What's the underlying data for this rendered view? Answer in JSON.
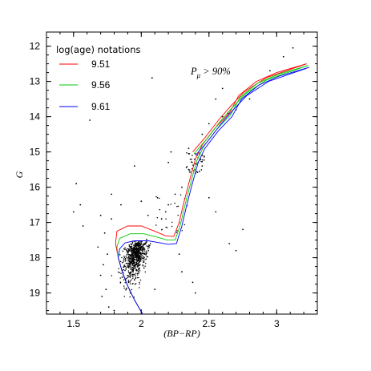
{
  "chart_data": {
    "type": "scatter",
    "title": "",
    "xlabel": "(BP−RP)",
    "ylabel": "G",
    "xlim": [
      1.3,
      3.3
    ],
    "ylim": [
      19.6,
      11.6
    ],
    "y_inverted": true,
    "x_ticks": [
      1.5,
      2,
      2.5,
      3
    ],
    "x_tick_labels": [
      "1.5",
      "2",
      "2.5",
      "3"
    ],
    "y_ticks": [
      12,
      13,
      14,
      15,
      16,
      17,
      18,
      19
    ],
    "y_tick_labels": [
      "12",
      "13",
      "14",
      "15",
      "16",
      "17",
      "18",
      "19"
    ],
    "legend": {
      "title": "log(age) notations",
      "placement": "top-left",
      "entries": [
        {
          "label": "9.51",
          "color": "#ff0000"
        },
        {
          "label": "9.56",
          "color": "#00cc00"
        },
        {
          "label": "9.61",
          "color": "#0000ff"
        }
      ]
    },
    "annotation": {
      "main": "P",
      "sub": "μ",
      "rest": " > 90%"
    },
    "isochrones": [
      {
        "name": "9.51",
        "color": "#ff0000",
        "points": [
          [
            2.01,
            19.6
          ],
          [
            1.95,
            19.2
          ],
          [
            1.9,
            18.8
          ],
          [
            1.86,
            18.4
          ],
          [
            1.83,
            18.0
          ],
          [
            1.81,
            17.6
          ],
          [
            1.82,
            17.25
          ],
          [
            1.9,
            17.1
          ],
          [
            2.0,
            17.1
          ],
          [
            2.1,
            17.25
          ],
          [
            2.18,
            17.38
          ],
          [
            2.24,
            17.4
          ],
          [
            2.28,
            17.0
          ],
          [
            2.31,
            16.5
          ],
          [
            2.35,
            15.9
          ],
          [
            2.4,
            15.2
          ],
          [
            2.45,
            14.8
          ],
          [
            2.55,
            14.3
          ],
          [
            2.65,
            13.9
          ],
          [
            2.72,
            13.4
          ],
          [
            2.85,
            13.0
          ],
          [
            3.0,
            12.75
          ],
          [
            3.22,
            12.5
          ]
        ]
      },
      {
        "name": "9.51-b",
        "color": "#ff0000",
        "points": [
          [
            2.38,
            15.0
          ],
          [
            2.47,
            14.6
          ],
          [
            2.57,
            14.1
          ],
          [
            2.66,
            13.7
          ],
          [
            2.76,
            13.3
          ],
          [
            2.92,
            12.9
          ],
          [
            3.22,
            12.5
          ]
        ]
      },
      {
        "name": "9.56",
        "color": "#00cc00",
        "points": [
          [
            2.01,
            19.6
          ],
          [
            1.95,
            19.2
          ],
          [
            1.9,
            18.8
          ],
          [
            1.86,
            18.4
          ],
          [
            1.83,
            18.0
          ],
          [
            1.82,
            17.7
          ],
          [
            1.84,
            17.45
          ],
          [
            1.92,
            17.32
          ],
          [
            2.02,
            17.32
          ],
          [
            2.12,
            17.42
          ],
          [
            2.19,
            17.5
          ],
          [
            2.25,
            17.5
          ],
          [
            2.29,
            17.05
          ],
          [
            2.32,
            16.55
          ],
          [
            2.36,
            15.95
          ],
          [
            2.41,
            15.25
          ],
          [
            2.46,
            14.85
          ],
          [
            2.56,
            14.35
          ],
          [
            2.66,
            13.95
          ],
          [
            2.73,
            13.45
          ],
          [
            2.86,
            13.05
          ],
          [
            3.01,
            12.8
          ],
          [
            3.23,
            12.55
          ]
        ]
      },
      {
        "name": "9.56-b",
        "color": "#00cc00",
        "points": [
          [
            2.39,
            15.05
          ],
          [
            2.48,
            14.65
          ],
          [
            2.58,
            14.15
          ],
          [
            2.67,
            13.75
          ],
          [
            2.77,
            13.35
          ],
          [
            2.93,
            12.95
          ],
          [
            3.23,
            12.55
          ]
        ]
      },
      {
        "name": "9.61",
        "color": "#0000ff",
        "points": [
          [
            2.01,
            19.6
          ],
          [
            1.95,
            19.2
          ],
          [
            1.9,
            18.8
          ],
          [
            1.86,
            18.4
          ],
          [
            1.83,
            18.0
          ],
          [
            1.84,
            17.75
          ],
          [
            1.88,
            17.58
          ],
          [
            1.95,
            17.52
          ],
          [
            2.05,
            17.52
          ],
          [
            2.14,
            17.58
          ],
          [
            2.2,
            17.62
          ],
          [
            2.26,
            17.6
          ],
          [
            2.3,
            17.1
          ],
          [
            2.33,
            16.6
          ],
          [
            2.37,
            16.0
          ],
          [
            2.42,
            15.3
          ],
          [
            2.47,
            14.9
          ],
          [
            2.57,
            14.4
          ],
          [
            2.67,
            14.0
          ],
          [
            2.74,
            13.5
          ],
          [
            2.87,
            13.1
          ],
          [
            3.02,
            12.85
          ],
          [
            3.24,
            12.6
          ]
        ]
      },
      {
        "name": "9.61-b",
        "color": "#0000ff",
        "points": [
          [
            2.4,
            15.1
          ],
          [
            2.49,
            14.7
          ],
          [
            2.59,
            14.2
          ],
          [
            2.68,
            13.8
          ],
          [
            2.78,
            13.4
          ],
          [
            2.94,
            13.0
          ],
          [
            3.24,
            12.6
          ]
        ]
      }
    ],
    "stars": [
      [
        1.62,
        14.1
      ],
      [
        2.08,
        12.9
      ],
      [
        3.05,
        12.3
      ],
      [
        3.12,
        12.05
      ],
      [
        2.95,
        12.7
      ],
      [
        1.52,
        15.9
      ],
      [
        1.55,
        16.5
      ],
      [
        1.5,
        16.7
      ],
      [
        1.57,
        17.1
      ],
      [
        1.78,
        16.2
      ],
      [
        1.85,
        16.5
      ],
      [
        2.0,
        16.4
      ],
      [
        2.05,
        16.8
      ],
      [
        2.2,
        16.5
      ],
      [
        2.25,
        16.2
      ],
      [
        2.35,
        14.9
      ],
      [
        2.4,
        15.6
      ],
      [
        2.42,
        15.3
      ],
      [
        2.45,
        15.1
      ],
      [
        2.5,
        14.2
      ],
      [
        2.6,
        14.0
      ],
      [
        2.7,
        13.8
      ],
      [
        2.8,
        13.5
      ],
      [
        2.75,
        17.2
      ],
      [
        2.7,
        17.8
      ],
      [
        2.65,
        17.6
      ],
      [
        2.5,
        16.3
      ],
      [
        2.55,
        16.7
      ],
      [
        2.3,
        16.0
      ],
      [
        2.35,
        15.5
      ],
      [
        2.2,
        15.3
      ],
      [
        1.7,
        16.8
      ],
      [
        2.15,
        16.9
      ],
      [
        2.28,
        17.9
      ],
      [
        2.3,
        18.4
      ],
      [
        2.4,
        19.0
      ],
      [
        2.38,
        18.7
      ],
      [
        2.45,
        14.5
      ],
      [
        2.55,
        13.5
      ],
      [
        2.64,
        13.9
      ],
      [
        1.95,
        15.4
      ],
      [
        2.6,
        13.2
      ],
      [
        2.35,
        15.05
      ],
      [
        2.45,
        15.4
      ],
      [
        2.43,
        15.55
      ],
      [
        2.22,
        15.0
      ],
      [
        1.73,
        17.3
      ],
      [
        1.75,
        17.9
      ],
      [
        1.72,
        18.2
      ],
      [
        1.7,
        18.5
      ],
      [
        1.74,
        18.9
      ],
      [
        1.68,
        17.7
      ],
      [
        1.71,
        19.1
      ],
      [
        1.76,
        19.4
      ],
      [
        1.8,
        19.5
      ],
      [
        1.78,
        16.9
      ],
      [
        2.12,
        16.3
      ],
      [
        2.18,
        16.7
      ],
      [
        1.92,
        19.0
      ],
      [
        2.1,
        18.9
      ]
    ]
  }
}
